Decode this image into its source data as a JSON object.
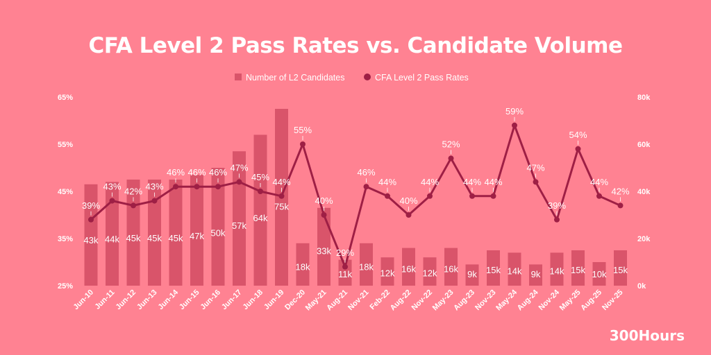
{
  "chart_data": {
    "type": "bar+line",
    "title": "CFA Level 2 Pass Rates vs. Candidate Volume",
    "categories": [
      "Jun-10",
      "Jun-11",
      "Jun-12",
      "Jun-13",
      "Jun-14",
      "Jun-15",
      "Jun-16",
      "Jun-17",
      "Jun-18",
      "Jun-19",
      "Dec-20",
      "May-21",
      "Aug-21",
      "Nov-21",
      "Feb-22",
      "Aug-22",
      "Nov-22",
      "May-23",
      "Aug-23",
      "Nov-23",
      "May-24",
      "Aug-24",
      "Nov-24",
      "May-25",
      "Aug-25",
      "Nov-25"
    ],
    "series": [
      {
        "name": "Number of L2 Candidates",
        "type": "bar",
        "axis": "right",
        "color": "#D9546A",
        "values": [
          43,
          44,
          45,
          45,
          45,
          47,
          50,
          57,
          64,
          75,
          18,
          33,
          11,
          18,
          12,
          16,
          12,
          16,
          9,
          15,
          14,
          9,
          14,
          15,
          10,
          15
        ],
        "labels": [
          "43k",
          "44k",
          "45k",
          "45k",
          "45k",
          "47k",
          "50k",
          "57k",
          "64k",
          "75k",
          "18k",
          "33k",
          "11k",
          "18k",
          "12k",
          "16k",
          "12k",
          "16k",
          "9k",
          "15k",
          "14k",
          "9k",
          "14k",
          "15k",
          "10k",
          "15k"
        ]
      },
      {
        "name": "CFA Level 2 Pass Rates",
        "type": "line",
        "axis": "left",
        "color": "#9E1F45",
        "values": [
          39,
          43,
          42,
          43,
          46,
          46,
          46,
          47,
          45,
          44,
          55,
          40,
          29,
          46,
          44,
          40,
          44,
          52,
          44,
          44,
          59,
          47,
          39,
          54,
          44,
          42
        ],
        "labels": [
          "39%",
          "43%",
          "42%",
          "43%",
          "46%",
          "46%",
          "46%",
          "47%",
          "45%",
          "44%",
          "55%",
          "40%",
          "29%",
          "46%",
          "44%",
          "40%",
          "44%",
          "52%",
          "44%",
          "44%",
          "59%",
          "47%",
          "39%",
          "54%",
          "44%",
          "42%"
        ]
      }
    ],
    "y_left": {
      "range": [
        25,
        65
      ],
      "ticks": [
        "25%",
        "35%",
        "45%",
        "55%",
        "65%"
      ],
      "tick_values": [
        25,
        35,
        45,
        55,
        65
      ]
    },
    "y_right": {
      "range": [
        0,
        80
      ],
      "ticks": [
        "0k",
        "20k",
        "40k",
        "60k",
        "80k"
      ],
      "tick_values": [
        0,
        20,
        40,
        60,
        80
      ]
    },
    "legend": "top-center",
    "grid": false
  },
  "brand": "300Hours",
  "colors": {
    "background": "#FF8292",
    "bar": "#D9546A",
    "line": "#9E1F45"
  }
}
